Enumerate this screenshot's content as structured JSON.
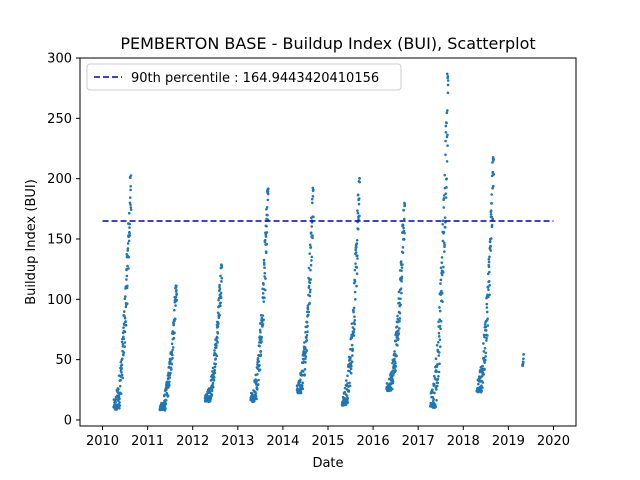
{
  "chart_data": {
    "type": "scatter",
    "title": "PEMBERTON BASE - Buildup Index (BUI), Scatterplot",
    "xlabel": "Date",
    "ylabel": "Buildup Index (BUI)",
    "xlim": [
      2009.5,
      2020.5
    ],
    "ylim": [
      -5,
      300
    ],
    "xticks": [
      "2010",
      "2011",
      "2012",
      "2013",
      "2014",
      "2015",
      "2016",
      "2017",
      "2018",
      "2019",
      "2020"
    ],
    "yticks": [
      "0",
      "50",
      "100",
      "150",
      "200",
      "250",
      "300"
    ],
    "grid": false,
    "legend": {
      "placement": "top-left",
      "entry": "90th percentile : 164.9443420410156"
    },
    "reference_line": {
      "label": "90th percentile : 164.9443420410156",
      "y": 164.9443420410156,
      "style": "dashed",
      "color": "#0000cc"
    },
    "marker_color": "#1f77b4",
    "season_ranges": [
      {
        "season": "2010",
        "start": "2010-04-01",
        "end": "2010-08-20",
        "min": 8,
        "max": 204
      },
      {
        "season": "2011",
        "start": "2011-04-10",
        "end": "2011-08-25",
        "min": 8,
        "max": 114
      },
      {
        "season": "2012",
        "start": "2012-04-10",
        "end": "2012-08-25",
        "min": 15,
        "max": 129
      },
      {
        "season": "2013",
        "start": "2013-04-15",
        "end": "2013-09-05",
        "min": 15,
        "max": 192
      },
      {
        "season": "2014",
        "start": "2014-04-25",
        "end": "2014-09-05",
        "min": 22,
        "max": 193
      },
      {
        "season": "2015",
        "start": "2015-04-25",
        "end": "2015-09-15",
        "min": 12,
        "max": 201
      },
      {
        "season": "2016",
        "start": "2016-04-20",
        "end": "2016-09-15",
        "min": 24,
        "max": 181
      },
      {
        "season": "2017",
        "start": "2017-04-10",
        "end": "2017-09-01",
        "min": 10,
        "max": 287
      },
      {
        "season": "2018",
        "start": "2018-04-20",
        "end": "2018-09-05",
        "min": 23,
        "max": 218
      },
      {
        "season": "2019",
        "start": "2019-04-25",
        "end": "2019-05-05",
        "min": 44,
        "max": 55
      }
    ]
  }
}
